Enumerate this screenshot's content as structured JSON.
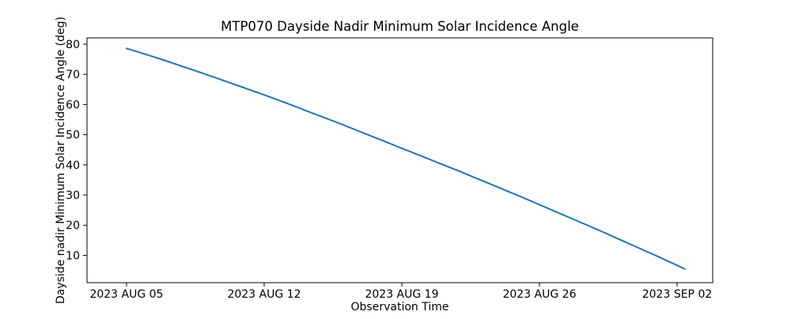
{
  "chart_data": {
    "type": "line",
    "title": "MTP070 Dayside Nadir Minimum Solar Incidence Angle",
    "xlabel": "Observation Time",
    "ylabel": "Dayside nadir Minimum Solar Incidence Angle (deg)",
    "grid": false,
    "legend": "none",
    "line_color": "#1f77b4",
    "axis_color": "#000000",
    "background_color": "#ffffff",
    "x_epoch_date": "2023 AUG 05",
    "xlim_days_from_epoch": [
      -2.01,
      29.81
    ],
    "ylim": [
      0.95,
      82.09
    ],
    "xticks": [
      {
        "label": "2023 AUG 05",
        "day": 0
      },
      {
        "label": "2023 AUG 12",
        "day": 7
      },
      {
        "label": "2023 AUG 19",
        "day": 14
      },
      {
        "label": "2023 AUG 26",
        "day": 21
      },
      {
        "label": "2023 SEP 02",
        "day": 28
      }
    ],
    "yticks": [
      10,
      20,
      30,
      40,
      50,
      60,
      70,
      80
    ],
    "series": [
      {
        "name": "dayside-nadir-min-solar-incidence-angle",
        "x_days": [
          0,
          1,
          2,
          3,
          4,
          5,
          6,
          7,
          8,
          9,
          10,
          11,
          12,
          13,
          14,
          15,
          16,
          17,
          18,
          19,
          20,
          21,
          22,
          23,
          24,
          25,
          26,
          27,
          28,
          28.4
        ],
        "values": [
          78.6,
          76.6,
          74.5,
          72.3,
          70.1,
          67.8,
          65.5,
          63.2,
          60.8,
          58.3,
          55.8,
          53.3,
          50.7,
          48.1,
          45.5,
          42.9,
          40.3,
          37.7,
          35.0,
          32.3,
          29.6,
          26.8,
          24.0,
          21.2,
          18.4,
          15.5,
          12.6,
          9.7,
          6.7,
          5.5
        ]
      }
    ]
  }
}
